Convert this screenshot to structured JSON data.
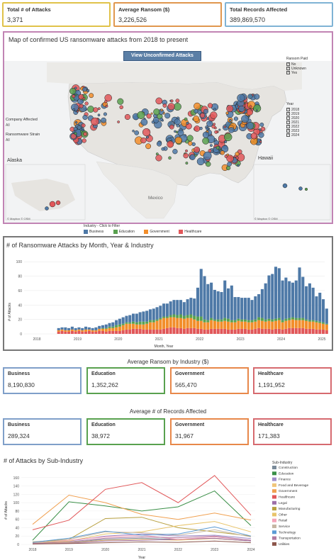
{
  "kpis": [
    {
      "title": "Total # of Attacks",
      "value": "3,371",
      "color": "#e0c24a"
    },
    {
      "title": "Average Ransom ($)",
      "value": "3,226,526",
      "color": "#e0974e"
    },
    {
      "title": "Total Records Affected",
      "value": "389,869,570",
      "color": "#7fb3d5"
    }
  ],
  "map": {
    "title": "Map of confirmed US ransomware attacks from 2018 to present",
    "button": "View Unconfirmed Attacks",
    "company_label": "Company Affected",
    "company_value": "All",
    "strain_label": "Ransomware Strain",
    "strain_value": "All",
    "alaska": "Alaska",
    "hawaii": "Hawaii",
    "mexico": "Mexico",
    "attribution": "© Mapbox © OSM",
    "attribution2": "© Mapbox © OSM",
    "ransom_paid_title": "Ransom Paid",
    "ransom_paid": [
      "No",
      "Unknown",
      "Yes"
    ],
    "year_title": "Year",
    "years": [
      "2018",
      "2019",
      "2020",
      "2021",
      "2022",
      "2023",
      "2024"
    ],
    "colors": {
      "business": "#4e79a7",
      "education": "#59a14f",
      "government": "#f28e2b",
      "healthcare": "#e15759"
    }
  },
  "industry_legend": {
    "title": "Industry - Click to Filter",
    "items": [
      {
        "label": "Business",
        "color": "#4e79a7"
      },
      {
        "label": "Education",
        "color": "#59a14f"
      },
      {
        "label": "Government",
        "color": "#f28e2b"
      },
      {
        "label": "Healthcare",
        "color": "#e15759"
      }
    ]
  },
  "chart_data": [
    {
      "type": "bar",
      "title": "# of Ransomware Attacks by Month, Year & Industry",
      "xlabel": "Month, Year",
      "ylabel": "# of Attacks",
      "ylim": [
        0,
        110
      ],
      "yticks": [
        0,
        20,
        40,
        60,
        80,
        100
      ],
      "xticks": [
        "2018",
        "2019",
        "2020",
        "2021",
        "2022",
        "2023",
        "2024",
        "2025"
      ],
      "stacked": true,
      "series_order": [
        "Healthcare",
        "Government",
        "Education",
        "Business"
      ],
      "months": 80,
      "series": [
        {
          "name": "Healthcare",
          "color": "#e15759",
          "values": [
            3,
            4,
            3,
            3,
            4,
            3,
            4,
            3,
            3,
            4,
            3,
            3,
            4,
            4,
            3,
            4,
            4,
            4,
            4,
            5,
            6,
            6,
            7,
            7,
            7,
            6,
            6,
            6,
            6,
            6,
            6,
            7,
            8,
            9,
            9,
            8,
            8,
            7,
            8,
            8,
            8,
            7,
            7,
            6,
            6,
            7,
            7,
            7,
            7,
            7,
            6,
            6,
            6,
            7,
            7,
            7,
            6,
            6,
            7,
            8,
            7,
            7,
            7,
            6,
            7,
            7,
            6,
            7,
            8,
            8,
            8,
            8,
            8,
            7,
            7,
            7,
            6,
            6,
            6,
            5
          ]
        },
        {
          "name": "Government",
          "color": "#f28e2b",
          "values": [
            2,
            2,
            2,
            2,
            2,
            2,
            2,
            2,
            3,
            2,
            2,
            2,
            3,
            3,
            4,
            4,
            4,
            5,
            6,
            7,
            8,
            8,
            7,
            6,
            6,
            7,
            8,
            10,
            10,
            12,
            14,
            15,
            14,
            14,
            14,
            14,
            14,
            14,
            14,
            14,
            12,
            11,
            11,
            10,
            10,
            12,
            11,
            10,
            10,
            11,
            11,
            10,
            10,
            11,
            10,
            10,
            10,
            10,
            10,
            11,
            11,
            10,
            11,
            11,
            11,
            12,
            10,
            11,
            11,
            12,
            11,
            11,
            11,
            11,
            10,
            10,
            10,
            9,
            8,
            8
          ]
        },
        {
          "name": "Education",
          "color": "#59a14f",
          "values": [
            0,
            0,
            0,
            0,
            0,
            0,
            0,
            0,
            0,
            0,
            0,
            0,
            0,
            1,
            1,
            2,
            2,
            3,
            3,
            2,
            2,
            2,
            3,
            3,
            4,
            4,
            3,
            3,
            3,
            2,
            2,
            2,
            2,
            3,
            4,
            4,
            5,
            4,
            4,
            5,
            5,
            6,
            6,
            4,
            3,
            3,
            2,
            3,
            3,
            4,
            4,
            3,
            3,
            3,
            3,
            3,
            3,
            3,
            3,
            4,
            4,
            3,
            3,
            3,
            3,
            3,
            3,
            3,
            3,
            3,
            3,
            3,
            3,
            2,
            2,
            2,
            2,
            2,
            2,
            1
          ]
        },
        {
          "name": "Business",
          "color": "#4e79a7",
          "values": [
            3,
            3,
            4,
            3,
            4,
            3,
            3,
            3,
            4,
            3,
            3,
            4,
            4,
            4,
            5,
            5,
            6,
            7,
            8,
            9,
            9,
            10,
            11,
            12,
            13,
            14,
            15,
            15,
            16,
            17,
            17,
            18,
            18,
            19,
            20,
            21,
            20,
            19,
            22,
            23,
            24,
            40,
            66,
            60,
            50,
            49,
            41,
            39,
            38,
            52,
            42,
            48,
            32,
            30,
            30,
            30,
            31,
            28,
            32,
            32,
            40,
            50,
            60,
            63,
            72,
            69,
            55,
            57,
            51,
            48,
            52,
            70,
            57,
            46,
            51,
            45,
            34,
            40,
            32,
            21
          ]
        }
      ]
    },
    {
      "type": "line",
      "title": "# of Attacks by Sub-Industry",
      "xlabel": "Year",
      "ylabel": "# of Attacks",
      "x": [
        "2018",
        "2019",
        "2020",
        "2021",
        "2022",
        "2023",
        "2024"
      ],
      "ylim": [
        0,
        180
      ],
      "yticks": [
        0,
        20,
        40,
        60,
        80,
        100,
        120,
        140,
        160
      ],
      "legend_title": "Sub-Industry",
      "series": [
        {
          "name": "Construction",
          "color": "#7a8a99",
          "values": [
            2,
            5,
            12,
            15,
            12,
            14,
            8
          ]
        },
        {
          "name": "Education",
          "color": "#3a8f47",
          "values": [
            10,
            102,
            92,
            80,
            90,
            128,
            45
          ]
        },
        {
          "name": "Finance",
          "color": "#a08bc9",
          "values": [
            3,
            8,
            20,
            25,
            20,
            22,
            14
          ]
        },
        {
          "name": "Food and Beverage",
          "color": "#f0c67a",
          "values": [
            2,
            4,
            10,
            12,
            10,
            14,
            8
          ]
        },
        {
          "name": "Government",
          "color": "#f0a050",
          "values": [
            48,
            118,
            100,
            72,
            60,
            75,
            58
          ]
        },
        {
          "name": "Healthcare",
          "color": "#e15759",
          "values": [
            35,
            58,
            132,
            148,
            100,
            165,
            70
          ]
        },
        {
          "name": "Legal",
          "color": "#9d6fa8",
          "values": [
            1,
            3,
            8,
            10,
            12,
            15,
            8
          ]
        },
        {
          "name": "Manufacturing",
          "color": "#b8a040",
          "values": [
            6,
            12,
            62,
            65,
            40,
            30,
            20
          ]
        },
        {
          "name": "Other",
          "color": "#e8c46a",
          "values": [
            3,
            8,
            25,
            30,
            45,
            55,
            30
          ]
        },
        {
          "name": "Retail",
          "color": "#f5a3b8",
          "values": [
            4,
            10,
            18,
            22,
            12,
            18,
            10
          ]
        },
        {
          "name": "Service",
          "color": "#c5b6a3",
          "values": [
            3,
            12,
            30,
            28,
            22,
            35,
            18
          ]
        },
        {
          "name": "Technology",
          "color": "#5b9bd5",
          "values": [
            5,
            15,
            32,
            22,
            25,
            42,
            20
          ]
        },
        {
          "name": "Transportation",
          "color": "#b07aa1",
          "values": [
            2,
            6,
            15,
            18,
            16,
            20,
            10
          ]
        },
        {
          "name": "Utilities",
          "color": "#8c564b",
          "values": [
            1,
            2,
            4,
            6,
            5,
            8,
            4
          ]
        }
      ]
    }
  ],
  "avg_ransom": {
    "title": "Average Ransom by Industry ($)",
    "cards": [
      {
        "title": "Business",
        "value": "8,190,830",
        "color": "#7f9fc9"
      },
      {
        "title": "Education",
        "value": "1,352,262",
        "color": "#59a14f"
      },
      {
        "title": "Government",
        "value": "565,470",
        "color": "#e8884a"
      },
      {
        "title": "Healthcare",
        "value": "1,191,952",
        "color": "#d66a6f"
      }
    ]
  },
  "avg_records": {
    "title": "Average # of Records Affected",
    "cards": [
      {
        "title": "Business",
        "value": "289,324",
        "color": "#7f9fc9"
      },
      {
        "title": "Education",
        "value": "38,972",
        "color": "#59a14f"
      },
      {
        "title": "Government",
        "value": "31,967",
        "color": "#e8884a"
      },
      {
        "title": "Healthcare",
        "value": "171,383",
        "color": "#d66a6f"
      }
    ]
  }
}
